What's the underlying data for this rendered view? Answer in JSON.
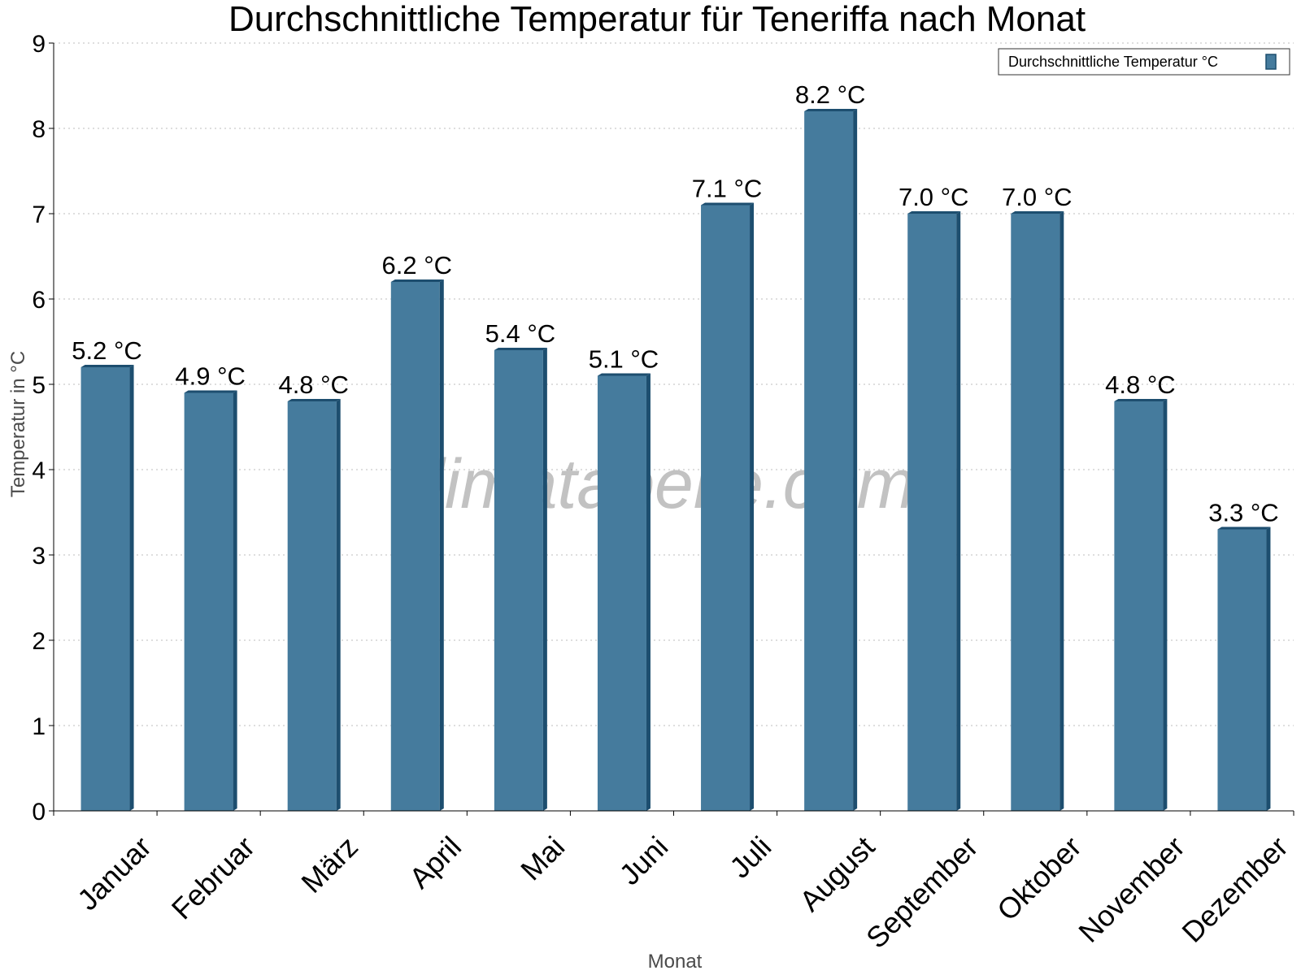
{
  "chart_data": {
    "type": "bar",
    "title": "Durchschnittliche Temperatur für Teneriffa nach Monat",
    "xlabel": "Monat",
    "ylabel": "Temperatur in °C",
    "categories": [
      "Januar",
      "Februar",
      "März",
      "April",
      "Mai",
      "Juni",
      "Juli",
      "August",
      "September",
      "Oktober",
      "November",
      "Dezember"
    ],
    "series": [
      {
        "name": "Durchschnittliche Temperatur °C",
        "values": [
          5.2,
          4.9,
          4.8,
          6.2,
          5.4,
          5.1,
          7.1,
          8.2,
          7.0,
          7.0,
          4.8,
          3.3
        ],
        "labels": [
          "5.2 °C",
          "4.9 °C",
          "4.8 °C",
          "6.2 °C",
          "5.4 °C",
          "5.1 °C",
          "7.1 °C",
          "8.2 °C",
          "7.0 °C",
          "7.0 °C",
          "4.8 °C",
          "3.3 °C"
        ]
      }
    ],
    "ylim": [
      0,
      9
    ],
    "yticks": [
      "0",
      "1",
      "2",
      "3",
      "4",
      "5",
      "6",
      "7",
      "8",
      "9"
    ],
    "grid": true,
    "legend_position": "top-right",
    "bar_color": "#457b9d",
    "bar_shade_color": "#1d4e6f",
    "watermark": "klimatabelle.com"
  }
}
